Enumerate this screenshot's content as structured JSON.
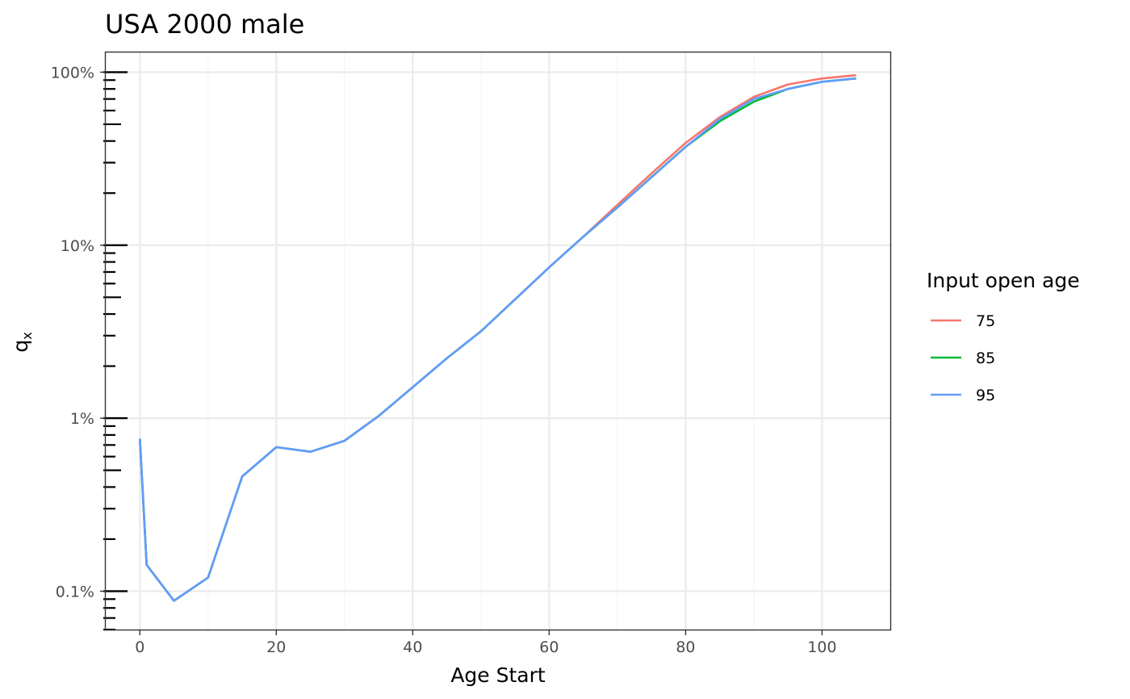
{
  "chart_data": {
    "type": "line",
    "title": "USA 2000 male",
    "xlabel": "Age Start",
    "ylabel": "q",
    "ylabel_subscript": "x",
    "xlim": [
      -5,
      110
    ],
    "ylim": [
      0.0006,
      1.3
    ],
    "y_scale": "log10",
    "x_ticks": [
      0,
      20,
      40,
      60,
      80,
      100
    ],
    "x_tick_labels": [
      "0",
      "20",
      "40",
      "60",
      "80",
      "100"
    ],
    "y_ticks": [
      0.001,
      0.01,
      0.1,
      1
    ],
    "y_tick_labels": [
      "0.1%",
      "1%",
      "10%",
      "100%"
    ],
    "grid": true,
    "legend": {
      "title": "Input open age",
      "placement": "right"
    },
    "series": [
      {
        "name": "75",
        "color": "#F8766D",
        "x": [
          0,
          1,
          5,
          10,
          15,
          20,
          25,
          30,
          35,
          40,
          45,
          50,
          55,
          60,
          65,
          70,
          75,
          80,
          85,
          90,
          95,
          100,
          105
        ],
        "y": [
          0.0076,
          0.00142,
          0.00088,
          0.0012,
          0.0046,
          0.0068,
          0.0064,
          0.0074,
          0.0103,
          0.0151,
          0.0222,
          0.0318,
          0.0486,
          0.0745,
          0.112,
          0.171,
          0.26,
          0.39,
          0.55,
          0.72,
          0.85,
          0.92,
          0.96
        ]
      },
      {
        "name": "85",
        "color": "#00BA38",
        "x": [
          0,
          1,
          5,
          10,
          15,
          20,
          25,
          30,
          35,
          40,
          45,
          50,
          55,
          60,
          65,
          70,
          75,
          80,
          85,
          90,
          95,
          100,
          105
        ],
        "y": [
          0.0076,
          0.00142,
          0.00088,
          0.0012,
          0.0046,
          0.0068,
          0.0064,
          0.0074,
          0.0103,
          0.0151,
          0.0222,
          0.0318,
          0.0486,
          0.0745,
          0.112,
          0.165,
          0.248,
          0.37,
          0.52,
          0.675,
          0.8,
          0.88,
          0.92
        ]
      },
      {
        "name": "95",
        "color": "#619CFF",
        "x": [
          0,
          1,
          5,
          10,
          15,
          20,
          25,
          30,
          35,
          40,
          45,
          50,
          55,
          60,
          65,
          70,
          75,
          80,
          85,
          90,
          95,
          100,
          105
        ],
        "y": [
          0.0076,
          0.00142,
          0.00088,
          0.0012,
          0.0046,
          0.0068,
          0.0064,
          0.0074,
          0.0103,
          0.0151,
          0.0222,
          0.0318,
          0.0486,
          0.0745,
          0.112,
          0.165,
          0.247,
          0.37,
          0.535,
          0.7,
          0.8,
          0.88,
          0.92
        ]
      }
    ]
  }
}
